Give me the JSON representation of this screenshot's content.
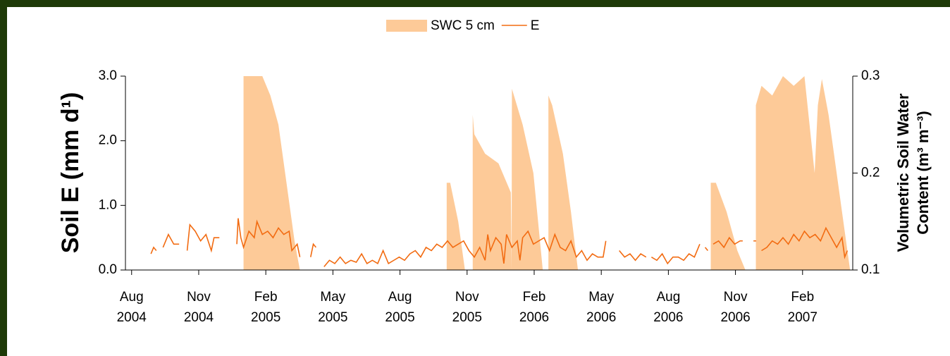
{
  "chart_data": {
    "type": "line",
    "legend": "top",
    "xlim": [
      2004.56,
      2007.27
    ],
    "xticks": [
      {
        "value": 2004.583,
        "label": "Aug 2004"
      },
      {
        "value": 2004.833,
        "label": "Nov 2004"
      },
      {
        "value": 2005.083,
        "label": "Feb 2005"
      },
      {
        "value": 2005.333,
        "label": "May 2005"
      },
      {
        "value": 2005.583,
        "label": "Aug 2005"
      },
      {
        "value": 2005.833,
        "label": "Nov 2005"
      },
      {
        "value": 2006.083,
        "label": "Feb 2006"
      },
      {
        "value": 2006.333,
        "label": "May 2006"
      },
      {
        "value": 2006.583,
        "label": "Aug 2006"
      },
      {
        "value": 2006.833,
        "label": "Nov 2006"
      },
      {
        "value": 2007.083,
        "label": "Feb 2007"
      }
    ],
    "ylim": [
      0,
      3
    ],
    "yticks": [
      {
        "value": 0,
        "label": "0.0"
      },
      {
        "value": 1,
        "label": "1.0"
      },
      {
        "value": 2,
        "label": "2.0"
      },
      {
        "value": 3,
        "label": "3.0"
      }
    ],
    "y2lim": [
      0.1,
      0.3
    ],
    "y2ticks": [
      0.1,
      0.2,
      0.3
    ],
    "ylabel": "Soil E (mm d¹)",
    "y2label": [
      "Volumetric Soil Water",
      "Content (m³ m⁻³)"
    ],
    "series": [
      {
        "name": "SWC 5 cm",
        "type": "area",
        "axis": "y2",
        "color": "#fdca98",
        "x": [
          2005.0,
          2005.07,
          2005.1,
          2005.13,
          2005.16,
          2005.19,
          2005.21,
          2005.5,
          2005.757,
          2005.77,
          2005.8,
          2005.825,
          2005.84,
          2005.854,
          2005.86,
          2005.9,
          2005.95,
          2005.996,
          2005.999,
          2006.0,
          2006.04,
          2006.08,
          2006.115,
          2006.13,
          2006.136,
          2006.15,
          2006.19,
          2006.22,
          2006.246,
          2006.5,
          2006.741,
          2006.76,
          2006.8,
          2006.84,
          2006.87,
          2006.89,
          2006.909,
          2006.93,
          2006.97,
          2007.01,
          2007.05,
          2007.09,
          2007.128,
          2007.14,
          2007.155,
          2007.18,
          2007.21,
          2007.24,
          2007.26
        ],
        "values": [
          0.3,
          0.3,
          0.28,
          0.25,
          0.19,
          0.13,
          0.1,
          null,
          0.19,
          0.19,
          0.15,
          0.1,
          null,
          0.26,
          0.24,
          0.22,
          0.21,
          0.18,
          0.1,
          0.287,
          0.25,
          0.2,
          0.1,
          null,
          0.28,
          0.27,
          0.22,
          0.16,
          0.1,
          null,
          0.19,
          0.19,
          0.16,
          0.12,
          0.1,
          null,
          0.27,
          0.29,
          0.28,
          0.3,
          0.29,
          0.3,
          0.2,
          0.27,
          0.297,
          0.26,
          0.2,
          0.14,
          0.1
        ]
      },
      {
        "name": "E",
        "type": "line",
        "color": "#f26b11",
        "x": [
          2004.655,
          2004.665,
          2004.675,
          2004.69,
          2004.7,
          2004.72,
          2004.74,
          2004.76,
          2004.775,
          2004.79,
          2004.8,
          2004.82,
          2004.84,
          2004.86,
          2004.88,
          2004.89,
          2004.91,
          2004.95,
          2004.975,
          2004.98,
          2004.99,
          2005.0,
          2005.02,
          2005.04,
          2005.05,
          2005.07,
          2005.09,
          2005.11,
          2005.13,
          2005.15,
          2005.17,
          2005.18,
          2005.2,
          2005.21,
          2005.23,
          2005.25,
          2005.26,
          2005.27,
          2005.29,
          2005.3,
          2005.32,
          2005.34,
          2005.36,
          2005.38,
          2005.4,
          2005.42,
          2005.44,
          2005.46,
          2005.48,
          2005.5,
          2005.52,
          2005.54,
          2005.56,
          2005.58,
          2005.6,
          2005.62,
          2005.64,
          2005.66,
          2005.68,
          2005.7,
          2005.72,
          2005.74,
          2005.76,
          2005.78,
          2005.8,
          2005.82,
          2005.84,
          2005.86,
          2005.88,
          2005.9,
          2005.91,
          2005.92,
          2005.94,
          2005.96,
          2005.97,
          2005.98,
          2006.0,
          2006.02,
          2006.03,
          2006.04,
          2006.06,
          2006.08,
          2006.1,
          2006.12,
          2006.14,
          2006.16,
          2006.18,
          2006.2,
          2006.22,
          2006.24,
          2006.26,
          2006.28,
          2006.3,
          2006.32,
          2006.34,
          2006.35,
          2006.38,
          2006.4,
          2006.42,
          2006.44,
          2006.46,
          2006.48,
          2006.5,
          2006.51,
          2006.52,
          2006.54,
          2006.56,
          2006.58,
          2006.6,
          2006.62,
          2006.64,
          2006.66,
          2006.68,
          2006.7,
          2006.71,
          2006.72,
          2006.73,
          2006.74,
          2006.75,
          2006.77,
          2006.79,
          2006.81,
          2006.83,
          2006.85,
          2006.86,
          2006.88,
          2006.9,
          2006.91,
          2006.92,
          2006.93,
          2006.95,
          2006.97,
          2006.99,
          2007.01,
          2007.03,
          2007.05,
          2007.07,
          2007.09,
          2007.11,
          2007.13,
          2007.15,
          2007.17,
          2007.19,
          2007.21,
          2007.23,
          2007.24,
          2007.25
        ],
        "values": [
          0.25,
          0.35,
          0.3,
          null,
          0.35,
          0.55,
          0.4,
          0.4,
          null,
          0.3,
          0.7,
          0.6,
          0.45,
          0.55,
          0.3,
          0.5,
          0.5,
          null,
          0.4,
          0.8,
          0.5,
          0.35,
          0.6,
          0.5,
          0.75,
          0.55,
          0.6,
          0.5,
          0.65,
          0.55,
          0.6,
          0.3,
          0.4,
          0.2,
          null,
          0.2,
          0.4,
          0.35,
          null,
          0.05,
          0.15,
          0.1,
          0.2,
          0.1,
          0.15,
          0.12,
          0.25,
          0.1,
          0.15,
          0.1,
          0.3,
          0.1,
          0.15,
          0.2,
          0.15,
          0.25,
          0.3,
          0.2,
          0.35,
          0.3,
          0.4,
          0.35,
          0.45,
          0.35,
          0.4,
          0.45,
          0.3,
          0.2,
          0.35,
          0.15,
          0.55,
          0.3,
          0.5,
          0.4,
          0.1,
          0.55,
          0.35,
          0.45,
          0.15,
          0.5,
          0.6,
          0.4,
          0.45,
          0.5,
          0.3,
          0.55,
          0.35,
          0.3,
          0.45,
          0.2,
          0.3,
          0.15,
          0.25,
          0.2,
          0.2,
          0.45,
          null,
          0.3,
          0.2,
          0.25,
          0.15,
          0.25,
          0.2,
          null,
          0.2,
          0.15,
          0.25,
          0.1,
          0.2,
          0.2,
          0.15,
          0.25,
          0.2,
          0.4,
          null,
          0.35,
          0.3,
          null,
          0.4,
          0.45,
          0.35,
          0.5,
          0.4,
          0.45,
          0.45,
          null,
          0.45,
          0.45,
          null,
          0.3,
          0.35,
          0.45,
          0.4,
          0.5,
          0.4,
          0.55,
          0.45,
          0.6,
          0.5,
          0.55,
          0.45,
          0.65,
          0.5,
          0.35,
          0.5,
          0.2,
          0.3
        ]
      }
    ]
  }
}
